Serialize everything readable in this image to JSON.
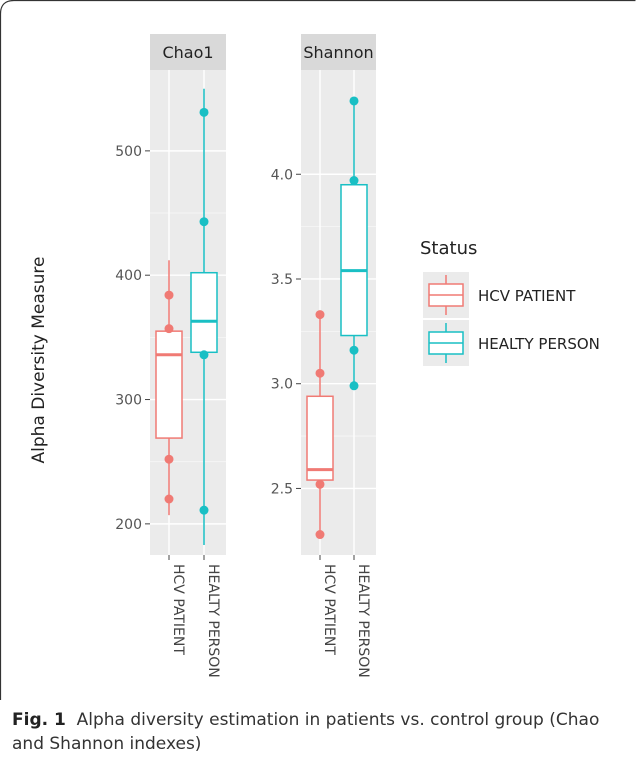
{
  "chart_data": {
    "type": "box",
    "ylabel": "Alpha Diversity Measure",
    "legend": {
      "title": "Status",
      "position": "right",
      "entries": [
        "HCV  PATIENT",
        "HEALTY PERSON"
      ]
    },
    "categories": [
      "HCV  PATIENT",
      "HEALTY PERSON"
    ],
    "colors": {
      "HCV  PATIENT": "#f07a74",
      "HEALTY PERSON": "#19bfc4",
      "panel": "#ebebeb",
      "strip": "#d9d9d9",
      "grid": "#ffffff"
    },
    "panels": [
      {
        "title": "Chao1",
        "ylim": [
          183,
          557
        ],
        "yticks": [
          200,
          300,
          400,
          500
        ],
        "boxes": [
          {
            "group": "HCV  PATIENT",
            "whisker_low": 207,
            "q1": 269,
            "median": 336,
            "q3": 355,
            "whisker_high": 412,
            "points": [
              220,
              252,
              357,
              384
            ]
          },
          {
            "group": "HEALTY PERSON",
            "whisker_low": 183,
            "q1": 338,
            "median": 363,
            "q3": 402,
            "whisker_high": 550,
            "points": [
              211,
              336,
              443,
              531
            ]
          }
        ]
      },
      {
        "title": "Shannon",
        "ylim": [
          2.23,
          4.45
        ],
        "yticks": [
          2.5,
          3.0,
          3.5,
          4.0
        ],
        "boxes": [
          {
            "group": "HCV  PATIENT",
            "whisker_low": 2.27,
            "q1": 2.54,
            "median": 2.59,
            "q3": 2.94,
            "whisker_high": 3.34,
            "points": [
              2.28,
              2.52,
              3.05,
              3.33
            ]
          },
          {
            "group": "HEALTY PERSON",
            "whisker_low": 2.99,
            "q1": 3.23,
            "median": 3.54,
            "q3": 3.95,
            "whisker_high": 4.36,
            "points": [
              2.99,
              3.16,
              3.97,
              4.35
            ]
          }
        ]
      }
    ]
  },
  "caption": {
    "label": "Fig. 1",
    "text": "Alpha diversity estimation in patients vs. control group (Chao and Shannon indexes)"
  }
}
